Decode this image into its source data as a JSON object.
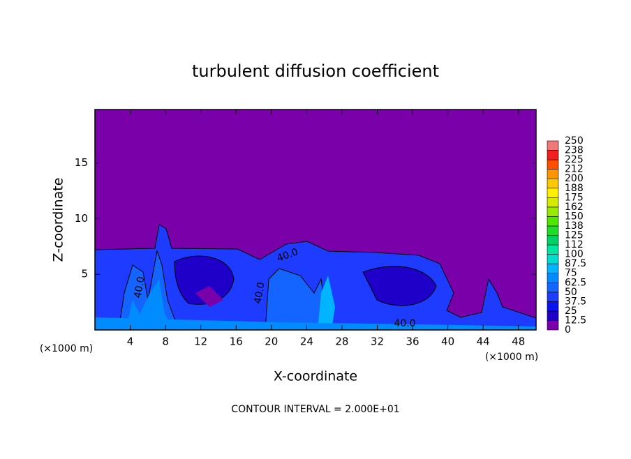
{
  "chart_data": {
    "type": "contour",
    "title": "turbulent diffusion coefficient",
    "xlabel": "X-coordinate",
    "ylabel": "Z-coordinate",
    "x_unit": "(×1000 m)",
    "footer": "CONTOUR INTERVAL = 2.000E+01",
    "xlim": [
      0,
      50
    ],
    "xticks": [
      4,
      8,
      12,
      16,
      20,
      24,
      28,
      32,
      36,
      40,
      44,
      48
    ],
    "ylim": [
      0,
      19.8
    ],
    "yticks": [
      5,
      10,
      15
    ],
    "contour_labels": [
      "40.0",
      "40.0",
      "40.0",
      "40.0"
    ],
    "colorbar": {
      "levels": [
        0,
        12.5,
        25,
        37.5,
        50,
        62.5,
        75,
        87.5,
        100,
        {
          "value": 112.5,
          "label": "112"
        },
        125,
        {
          "value": 137.5,
          "label": "138"
        },
        150,
        {
          "value": 162.5,
          "label": "162"
        },
        175,
        {
          "value": 187.5,
          "label": "188"
        },
        200,
        {
          "value": 212.5,
          "label": "212"
        },
        225,
        {
          "value": 237.5,
          "label": "238"
        },
        250
      ],
      "colors": [
        "#7a00aa",
        "#1e00c8",
        "#0a14f0",
        "#1e3cff",
        "#1464ff",
        "#008cff",
        "#00b4ff",
        "#00dcd2",
        "#00e6a0",
        "#00d264",
        "#1edc28",
        "#50e600",
        "#96eb00",
        "#d2eb00",
        "#fff000",
        "#ffc800",
        "#ff9600",
        "#ff5000",
        "#f01e1e",
        "#f07878"
      ]
    }
  }
}
